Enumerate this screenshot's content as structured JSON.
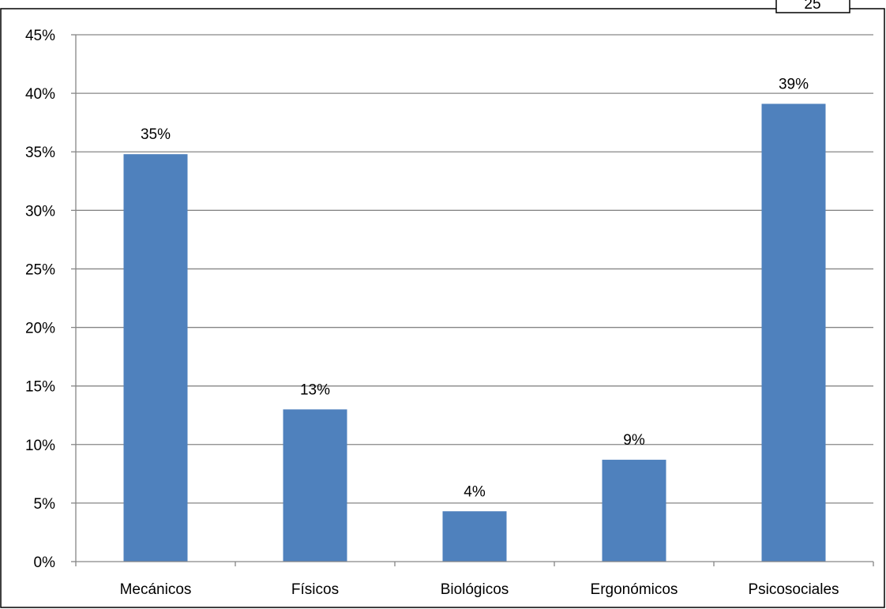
{
  "corner_badge": {
    "text": "25"
  },
  "colors": {
    "bar": "#4F81BD",
    "grid": "#868686",
    "axis": "#868686",
    "border": "#000000"
  },
  "chart_data": {
    "type": "bar",
    "title": "",
    "xlabel": "",
    "ylabel": "",
    "categories": [
      "Mecánicos",
      "Físicos",
      "Biológicos",
      "Ergonómicos",
      "Psicosociales"
    ],
    "values": [
      34.8,
      13.0,
      4.3,
      8.7,
      39.1
    ],
    "data_labels": [
      "35%",
      "13%",
      "4%",
      "9%",
      "39%"
    ],
    "ylim": [
      0,
      45
    ],
    "yticks": [
      0,
      5,
      10,
      15,
      20,
      25,
      30,
      35,
      40,
      45
    ],
    "ytick_labels": [
      "0%",
      "5%",
      "10%",
      "15%",
      "20%",
      "25%",
      "30%",
      "35%",
      "40%",
      "45%"
    ],
    "grid": true,
    "legend": "none"
  }
}
